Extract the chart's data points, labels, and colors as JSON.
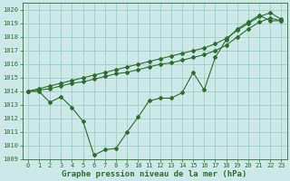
{
  "xlabel": "Graphe pression niveau de la mer (hPa)",
  "bg_color": "#cce8e8",
  "grid_color": "#99ccbb",
  "line_color": "#2d6e2d",
  "xlim": [
    -0.5,
    23.5
  ],
  "ylim": [
    1009.0,
    1020.5
  ],
  "yticks": [
    1009,
    1010,
    1011,
    1012,
    1013,
    1014,
    1015,
    1016,
    1017,
    1018,
    1019,
    1020
  ],
  "xticks": [
    0,
    1,
    2,
    3,
    4,
    5,
    6,
    7,
    8,
    9,
    10,
    11,
    12,
    13,
    14,
    15,
    16,
    17,
    18,
    19,
    20,
    21,
    22,
    23
  ],
  "line_wavy": [
    1014.0,
    1014.0,
    1013.2,
    1013.6,
    1012.8,
    1011.8,
    1009.3,
    1009.7,
    1009.8,
    1011.0,
    1012.1,
    1013.3,
    1013.5,
    1013.5,
    1013.9,
    1015.4,
    1014.1,
    1016.5,
    1017.8,
    1018.6,
    1019.1,
    1019.6,
    1019.2,
    1019.2
  ],
  "line_upper": [
    1014.0,
    1014.2,
    1014.4,
    1014.6,
    1014.8,
    1015.0,
    1015.2,
    1015.4,
    1015.6,
    1015.8,
    1016.0,
    1016.2,
    1016.4,
    1016.6,
    1016.8,
    1017.0,
    1017.2,
    1017.5,
    1017.9,
    1018.5,
    1019.0,
    1019.5,
    1019.8,
    1019.3
  ],
  "line_lower": [
    1014.0,
    1014.1,
    1014.2,
    1014.4,
    1014.6,
    1014.7,
    1014.9,
    1015.1,
    1015.3,
    1015.4,
    1015.6,
    1015.8,
    1016.0,
    1016.1,
    1016.3,
    1016.5,
    1016.7,
    1017.0,
    1017.4,
    1018.0,
    1018.6,
    1019.1,
    1019.4,
    1019.2
  ],
  "marker": "D",
  "marker_size": 2.0,
  "line_width": 0.8,
  "tick_fontsize": 5.0,
  "xlabel_fontsize": 6.5,
  "xlabel_bold": true,
  "figwidth": 3.2,
  "figheight": 2.0,
  "dpi": 100
}
